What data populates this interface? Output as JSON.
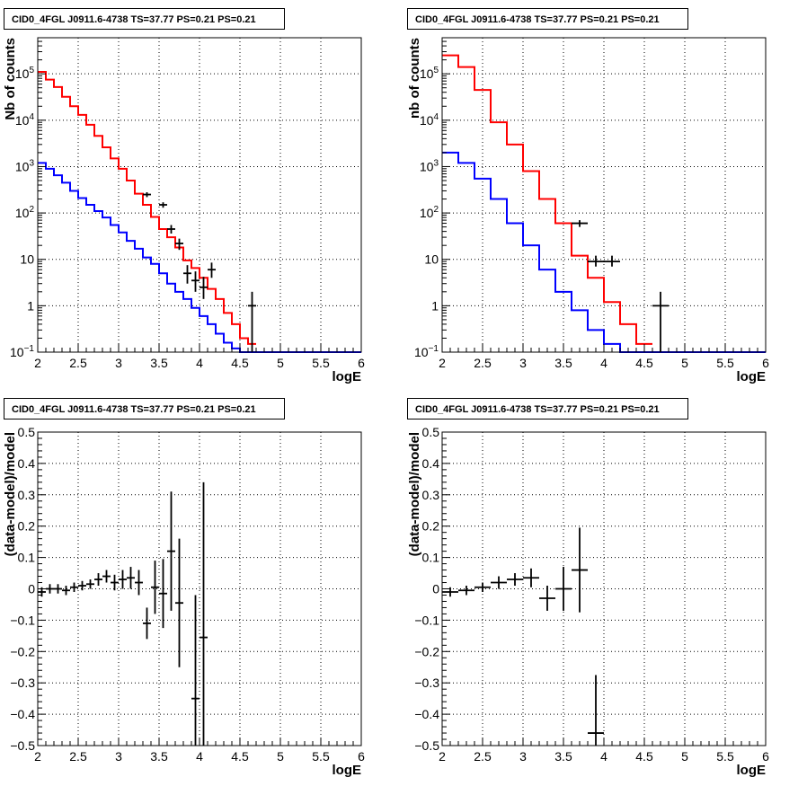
{
  "chart_data": [
    {
      "type": "histogram",
      "title": "CID0_4FGL J0911.6-4738 TS=37.77 PS=0.21 PS=0.21",
      "xlabel": "logE",
      "ylabel": "Nb of counts",
      "xlim": [
        2,
        6
      ],
      "ylim": [
        0.1,
        600000
      ],
      "yscale": "log",
      "grid": true,
      "x_ticks": [
        "2",
        "2.5",
        "3",
        "3.5",
        "4",
        "4.5",
        "5",
        "5.5",
        "6"
      ],
      "y_ticks": [
        {
          "value": 0.1,
          "base": "10",
          "exp": "−1"
        },
        {
          "value": 1,
          "base": "1",
          "exp": ""
        },
        {
          "value": 10,
          "base": "10",
          "exp": ""
        },
        {
          "value": 100,
          "base": "10",
          "exp": "2"
        },
        {
          "value": 1000,
          "base": "10",
          "exp": "3"
        },
        {
          "value": 10000,
          "base": "10",
          "exp": "4"
        },
        {
          "value": 100000,
          "base": "10",
          "exp": "5"
        }
      ],
      "bin_edges": [
        2.0,
        2.1,
        2.2,
        2.3,
        2.4,
        2.5,
        2.6,
        2.7,
        2.8,
        2.9,
        3.0,
        3.1,
        3.2,
        3.3,
        3.4,
        3.5,
        3.6,
        3.7,
        3.8,
        3.9,
        4.0,
        4.1,
        4.2,
        4.3,
        4.4,
        4.5,
        4.6,
        4.7,
        4.8,
        4.9,
        5.0,
        5.1,
        5.2,
        5.3,
        5.4,
        5.5,
        5.6,
        5.7,
        5.8,
        5.9,
        6.0
      ],
      "series": [
        {
          "name": "",
          "color": "#ff0000",
          "values": [
            110000,
            75000,
            52000,
            32000,
            20000,
            13000,
            8000,
            4600,
            2600,
            1500,
            900,
            500,
            260,
            150,
            82,
            45,
            30,
            18,
            9.5,
            6.5,
            4,
            2.3,
            1.4,
            0.7,
            0.4,
            0.2,
            0.15,
            0,
            0,
            0,
            0,
            0,
            0,
            0,
            0,
            0,
            0,
            0,
            0,
            0
          ]
        },
        {
          "name": "",
          "color": "#0000ff",
          "values": [
            1200,
            900,
            650,
            450,
            300,
            210,
            150,
            110,
            80,
            55,
            38,
            25,
            17,
            11,
            8,
            5,
            3,
            2,
            1.4,
            0.9,
            0.6,
            0.4,
            0.25,
            0.16,
            0.12,
            0.1,
            0.1,
            0.1,
            0.1,
            0.1,
            0.1,
            0.1,
            0.1,
            0.1,
            0.1,
            0.1,
            0.1,
            0.1,
            0.1,
            0.1
          ]
        }
      ],
      "data_points": [
        {
          "x": 3.35,
          "y": 250,
          "xerr": 0.05,
          "ylo": 220,
          "yhi": 280
        },
        {
          "x": 3.55,
          "y": 150,
          "xerr": 0.05,
          "ylo": 130,
          "yhi": 170
        },
        {
          "x": 3.65,
          "y": 45,
          "xerr": 0.05,
          "ylo": 36,
          "yhi": 55
        },
        {
          "x": 3.75,
          "y": 22,
          "xerr": 0.05,
          "ylo": 16,
          "yhi": 28
        },
        {
          "x": 3.85,
          "y": 5,
          "xerr": 0.05,
          "ylo": 3,
          "yhi": 7.5
        },
        {
          "x": 3.95,
          "y": 3.5,
          "xerr": 0.05,
          "ylo": 2,
          "yhi": 5.5
        },
        {
          "x": 4.05,
          "y": 2.5,
          "xerr": 0.05,
          "ylo": 1.4,
          "yhi": 4.2
        },
        {
          "x": 4.15,
          "y": 6,
          "xerr": 0.05,
          "ylo": 4,
          "yhi": 8.5
        },
        {
          "x": 4.65,
          "y": 1,
          "xerr": 0.05,
          "ylo": 0.1,
          "yhi": 2
        }
      ]
    },
    {
      "type": "histogram",
      "title": "CID0_4FGL J0911.6-4738 TS=37.77 PS=0.21 PS=0.21",
      "xlabel": "logE",
      "ylabel": "nb of counts",
      "xlim": [
        2,
        6
      ],
      "ylim": [
        0.1,
        600000
      ],
      "yscale": "log",
      "grid": true,
      "x_ticks": [
        "2",
        "2.5",
        "3",
        "3.5",
        "4",
        "4.5",
        "5",
        "5.5",
        "6"
      ],
      "y_ticks": [
        {
          "value": 0.1,
          "base": "10",
          "exp": "−1"
        },
        {
          "value": 1,
          "base": "1",
          "exp": ""
        },
        {
          "value": 10,
          "base": "10",
          "exp": ""
        },
        {
          "value": 100,
          "base": "10",
          "exp": "2"
        },
        {
          "value": 1000,
          "base": "10",
          "exp": "3"
        },
        {
          "value": 10000,
          "base": "10",
          "exp": "4"
        },
        {
          "value": 100000,
          "base": "10",
          "exp": "5"
        }
      ],
      "bin_edges": [
        2.0,
        2.2,
        2.4,
        2.6,
        2.8,
        3.0,
        3.2,
        3.4,
        3.6,
        3.8,
        4.0,
        4.2,
        4.4,
        4.6,
        4.8,
        5.0,
        5.2,
        5.4,
        5.6,
        5.8,
        6.0
      ],
      "series": [
        {
          "name": "",
          "color": "#ff0000",
          "values": [
            250000,
            140000,
            45000,
            9000,
            3000,
            800,
            200,
            60,
            12,
            4,
            1.2,
            0.4,
            0.15,
            0,
            0,
            0,
            0,
            0,
            0,
            0
          ]
        },
        {
          "name": "",
          "color": "#0000ff",
          "values": [
            2000,
            1200,
            550,
            200,
            60,
            20,
            6,
            2,
            0.8,
            0.3,
            0.15,
            0.1,
            0.1,
            0.1,
            0.1,
            0.1,
            0.1,
            0.1,
            0.1,
            0.1
          ]
        }
      ],
      "data_points": [
        {
          "x": 3.7,
          "y": 60,
          "xerr": 0.1,
          "ylo": 50,
          "yhi": 70
        },
        {
          "x": 3.9,
          "y": 9,
          "xerr": 0.1,
          "ylo": 7,
          "yhi": 12
        },
        {
          "x": 4.1,
          "y": 9,
          "xerr": 0.1,
          "ylo": 7,
          "yhi": 12
        },
        {
          "x": 4.7,
          "y": 1,
          "xerr": 0.1,
          "ylo": 0.1,
          "yhi": 2
        }
      ]
    },
    {
      "type": "scatter",
      "title": "CID0_4FGL J0911.6-4738 TS=37.77 PS=0.21 PS=0.21",
      "xlabel": "logE",
      "ylabel": "(data-model)/model",
      "xlim": [
        2,
        6
      ],
      "ylim": [
        -0.5,
        0.5
      ],
      "yscale": "linear",
      "grid": true,
      "x_ticks": [
        "2",
        "2.5",
        "3",
        "3.5",
        "4",
        "4.5",
        "5",
        "5.5",
        "6"
      ],
      "y_ticks": [
        "−0.5",
        "−0.4",
        "−0.3",
        "−0.2",
        "−0.1",
        "0",
        "0.1",
        "0.2",
        "0.3",
        "0.4",
        "0.5"
      ],
      "points": [
        {
          "x": 2.05,
          "y": -0.01,
          "xerr": 0.05,
          "yerr": 0.015
        },
        {
          "x": 2.15,
          "y": 0.0,
          "xerr": 0.05,
          "yerr": 0.015
        },
        {
          "x": 2.25,
          "y": 0.0,
          "xerr": 0.05,
          "yerr": 0.015
        },
        {
          "x": 2.35,
          "y": -0.005,
          "xerr": 0.05,
          "yerr": 0.015
        },
        {
          "x": 2.45,
          "y": 0.005,
          "xerr": 0.05,
          "yerr": 0.015
        },
        {
          "x": 2.55,
          "y": 0.01,
          "xerr": 0.05,
          "yerr": 0.015
        },
        {
          "x": 2.65,
          "y": 0.015,
          "xerr": 0.05,
          "yerr": 0.015
        },
        {
          "x": 2.75,
          "y": 0.03,
          "xerr": 0.05,
          "yerr": 0.02
        },
        {
          "x": 2.85,
          "y": 0.04,
          "xerr": 0.05,
          "yerr": 0.02
        },
        {
          "x": 2.95,
          "y": 0.02,
          "xerr": 0.05,
          "yerr": 0.025
        },
        {
          "x": 3.05,
          "y": 0.03,
          "xerr": 0.05,
          "yerr": 0.03
        },
        {
          "x": 3.15,
          "y": 0.035,
          "xerr": 0.05,
          "yerr": 0.035
        },
        {
          "x": 3.25,
          "y": 0.02,
          "xerr": 0.05,
          "yerr": 0.04
        },
        {
          "x": 3.35,
          "y": -0.11,
          "xerr": 0.05,
          "yerr": 0.05
        },
        {
          "x": 3.45,
          "y": 0.005,
          "xerr": 0.05,
          "yerr": 0.085
        },
        {
          "x": 3.55,
          "y": -0.015,
          "xerr": 0.05,
          "yerr": 0.11
        },
        {
          "x": 3.65,
          "y": 0.12,
          "xerr": 0.05,
          "yerr": 0.19
        },
        {
          "x": 3.75,
          "y": -0.045,
          "xerr": 0.05,
          "yerr": 0.205
        },
        {
          "x": 3.95,
          "y": -0.35,
          "xerr": 0.05,
          "yerr": 0.33
        },
        {
          "x": 4.05,
          "y": -0.155,
          "xerr": 0.05,
          "yerr": 0.495
        }
      ]
    },
    {
      "type": "scatter",
      "title": "CID0_4FGL J0911.6-4738 TS=37.77 PS=0.21 PS=0.21",
      "xlabel": "logE",
      "ylabel": "(data-model)/model",
      "xlim": [
        2,
        6
      ],
      "ylim": [
        -0.5,
        0.5
      ],
      "yscale": "linear",
      "grid": true,
      "x_ticks": [
        "2",
        "2.5",
        "3",
        "3.5",
        "4",
        "4.5",
        "5",
        "5.5",
        "6"
      ],
      "y_ticks": [
        "−0.5",
        "−0.4",
        "−0.3",
        "−0.2",
        "−0.1",
        "0",
        "0.1",
        "0.2",
        "0.3",
        "0.4",
        "0.5"
      ],
      "points": [
        {
          "x": 2.1,
          "y": -0.01,
          "xerr": 0.1,
          "yerr": 0.015
        },
        {
          "x": 2.3,
          "y": -0.005,
          "xerr": 0.1,
          "yerr": 0.015
        },
        {
          "x": 2.5,
          "y": 0.005,
          "xerr": 0.1,
          "yerr": 0.015
        },
        {
          "x": 2.7,
          "y": 0.02,
          "xerr": 0.1,
          "yerr": 0.02
        },
        {
          "x": 2.9,
          "y": 0.03,
          "xerr": 0.1,
          "yerr": 0.02
        },
        {
          "x": 3.1,
          "y": 0.035,
          "xerr": 0.1,
          "yerr": 0.03
        },
        {
          "x": 3.3,
          "y": -0.03,
          "xerr": 0.1,
          "yerr": 0.04
        },
        {
          "x": 3.5,
          "y": 0.0,
          "xerr": 0.1,
          "yerr": 0.07
        },
        {
          "x": 3.7,
          "y": 0.06,
          "xerr": 0.1,
          "yerr": 0.135
        },
        {
          "x": 3.9,
          "y": -0.46,
          "xerr": 0.1,
          "yerr": 0.185
        }
      ]
    }
  ]
}
